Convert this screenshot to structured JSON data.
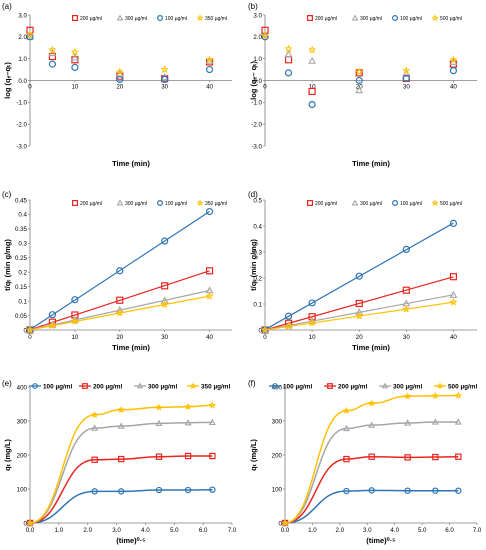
{
  "colors": {
    "s100": "#2E75B6",
    "s200": "#E8251F",
    "s300": "#A6A6A6",
    "s350": "#FFC000",
    "s500": "#FFC000"
  },
  "chart_data": [
    {
      "panel": "(a)",
      "type": "scatter",
      "xlabel": "Time (min)",
      "ylabel": "log (qₑ–qₜ)",
      "xlim": [
        0,
        45
      ],
      "ylim": [
        -3.0,
        3.0
      ],
      "xticks": [
        "0",
        "10",
        "20",
        "30",
        "40"
      ],
      "yticks": [
        "3.0",
        "2.0",
        "1.0",
        "0.0",
        "-1.0",
        "-2.0",
        "-3.0"
      ],
      "legend": "top-right",
      "series": [
        {
          "name": "200 µg/ml",
          "marker": "square",
          "color": "#E8251F",
          "x": [
            0,
            5,
            10,
            20,
            30,
            40
          ],
          "y": [
            2.3,
            1.1,
            0.95,
            0.2,
            0.08,
            0.85
          ]
        },
        {
          "name": "300 µg/ml",
          "marker": "triangle",
          "color": "#A6A6A6",
          "x": [
            0,
            5,
            10,
            20,
            30,
            40
          ],
          "y": [
            2.0,
            1.25,
            1.05,
            0.3,
            0.15,
            0.9
          ]
        },
        {
          "name": "100 µg/ml",
          "marker": "circle",
          "color": "#2E75B6",
          "x": [
            0,
            5,
            10,
            20,
            30,
            40
          ],
          "y": [
            2.0,
            0.75,
            0.6,
            0.05,
            0.05,
            0.5
          ]
        },
        {
          "name": "350 µg/ml",
          "marker": "star",
          "color": "#FFC000",
          "x": [
            0,
            5,
            10,
            20,
            30,
            40
          ],
          "y": [
            2.1,
            1.4,
            1.3,
            0.4,
            0.5,
            0.95
          ]
        }
      ]
    },
    {
      "panel": "(b)",
      "type": "scatter",
      "xlabel": "Time (min)",
      "ylabel": "log (qₑ– qₜ)",
      "xlim": [
        0,
        45
      ],
      "ylim": [
        -3.0,
        3.0
      ],
      "xticks": [
        "0",
        "10",
        "20",
        "30",
        "40"
      ],
      "yticks": [
        "3.0",
        "2.0",
        "1.0",
        "0.0",
        "-1.0",
        "-2.0",
        "-3.0"
      ],
      "legend": "top-right",
      "series": [
        {
          "name": "200 µg/ml",
          "marker": "square",
          "color": "#E8251F",
          "x": [
            0,
            5,
            10,
            20,
            30,
            40
          ],
          "y": [
            2.3,
            0.95,
            -0.5,
            0.35,
            0.1,
            0.75
          ]
        },
        {
          "name": "300 µg/ml",
          "marker": "triangle",
          "color": "#A6A6A6",
          "x": [
            0,
            5,
            10,
            20,
            30,
            40
          ],
          "y": [
            2.1,
            1.2,
            0.9,
            -0.45,
            0.3,
            0.85
          ]
        },
        {
          "name": "100 µg/ml",
          "marker": "circle",
          "color": "#2E75B6",
          "x": [
            0,
            5,
            10,
            20,
            30,
            40
          ],
          "y": [
            2.0,
            0.35,
            -1.1,
            0.0,
            0.1,
            0.45
          ]
        },
        {
          "name": "500 µg/ml",
          "marker": "star",
          "color": "#FFC000",
          "x": [
            0,
            5,
            10,
            20,
            30,
            40
          ],
          "y": [
            2.05,
            1.45,
            1.4,
            0.4,
            0.45,
            0.95
          ]
        }
      ]
    },
    {
      "panel": "(c)",
      "type": "scatter",
      "xlabel": "Time (min)",
      "ylabel": "t/qₜ (min g/mg)",
      "xlim": [
        0,
        45
      ],
      "ylim": [
        0,
        0.45
      ],
      "xticks": [
        "0",
        "10",
        "20",
        "30",
        "40"
      ],
      "yticks": [
        "0.45",
        "0.4",
        "0.35",
        "0.3",
        "0.25",
        "0.2",
        "0.15",
        "0.1",
        "0.05",
        "0"
      ],
      "legend": "top-right",
      "series": [
        {
          "name": "200 µg/ml",
          "marker": "square",
          "color": "#E8251F",
          "x": [
            0,
            5,
            10,
            20,
            30,
            40
          ],
          "y": [
            0,
            0.027,
            0.052,
            0.103,
            0.153,
            0.205
          ]
        },
        {
          "name": "300 µg/ml",
          "marker": "triangle",
          "color": "#A6A6A6",
          "x": [
            0,
            5,
            10,
            20,
            30,
            40
          ],
          "y": [
            0,
            0.018,
            0.035,
            0.069,
            0.102,
            0.137
          ]
        },
        {
          "name": "100 µg/ml",
          "marker": "circle",
          "color": "#2E75B6",
          "x": [
            0,
            5,
            10,
            20,
            30,
            40
          ],
          "y": [
            0,
            0.053,
            0.105,
            0.205,
            0.308,
            0.41
          ]
        },
        {
          "name": "350 µg/ml",
          "marker": "star",
          "color": "#FFC000",
          "x": [
            0,
            5,
            10,
            20,
            30,
            40
          ],
          "y": [
            0,
            0.015,
            0.03,
            0.059,
            0.088,
            0.117
          ]
        }
      ]
    },
    {
      "panel": "(d)",
      "type": "scatter",
      "xlabel": "Time (min)",
      "ylabel": "t/qₜ (min g/mg)",
      "xlim": [
        0,
        45
      ],
      "ylim": [
        0,
        0.5
      ],
      "xticks": [
        "0",
        "10",
        "20",
        "30",
        "40"
      ],
      "yticks": [
        "0.5",
        "0.4",
        "0.3",
        "0.2",
        "0.1",
        "0"
      ],
      "legend": "top-right",
      "series": [
        {
          "name": "200 µg/ml",
          "marker": "square",
          "color": "#E8251F",
          "x": [
            0,
            5,
            10,
            20,
            30,
            40
          ],
          "y": [
            0,
            0.026,
            0.051,
            0.102,
            0.153,
            0.205
          ]
        },
        {
          "name": "300 µg/ml",
          "marker": "triangle",
          "color": "#A6A6A6",
          "x": [
            0,
            5,
            10,
            20,
            30,
            40
          ],
          "y": [
            0,
            0.017,
            0.034,
            0.068,
            0.102,
            0.135
          ]
        },
        {
          "name": "100 µg/ml",
          "marker": "circle",
          "color": "#2E75B6",
          "x": [
            0,
            5,
            10,
            20,
            30,
            40
          ],
          "y": [
            0,
            0.053,
            0.104,
            0.207,
            0.31,
            0.41
          ]
        },
        {
          "name": "500 µg/ml",
          "marker": "star",
          "color": "#FFC000",
          "x": [
            0,
            5,
            10,
            20,
            30,
            40
          ],
          "y": [
            0,
            0.014,
            0.027,
            0.054,
            0.08,
            0.107
          ]
        }
      ]
    },
    {
      "panel": "(e)",
      "type": "line",
      "xlabel": "(time)⁰·⁵",
      "ylabel": "qₜ (mg/L)",
      "xlim": [
        0,
        7.0
      ],
      "ylim": [
        0,
        400
      ],
      "xticks": [
        "0.0",
        "1.0",
        "2.0",
        "3.0",
        "4.0",
        "5.0",
        "6.0",
        "7.0"
      ],
      "yticks": [
        "400",
        "300",
        "200",
        "100",
        "0"
      ],
      "legend": "top",
      "series": [
        {
          "name": "100 µg/ml",
          "marker": "circle",
          "color": "#2E75B6",
          "x": [
            0,
            2.24,
            3.16,
            4.47,
            5.48,
            6.32
          ],
          "y": [
            0,
            93,
            93,
            97,
            97,
            98
          ]
        },
        {
          "name": "200 µg/ml",
          "marker": "square",
          "color": "#E8251F",
          "x": [
            0,
            2.24,
            3.16,
            4.47,
            5.48,
            6.32
          ],
          "y": [
            0,
            186,
            188,
            195,
            197,
            197
          ]
        },
        {
          "name": "300 µg/ml",
          "marker": "triangle",
          "color": "#A6A6A6",
          "x": [
            0,
            2.24,
            3.16,
            4.47,
            5.48,
            6.32
          ],
          "y": [
            0,
            279,
            285,
            293,
            295,
            296
          ]
        },
        {
          "name": "350 µg/ml",
          "marker": "star",
          "color": "#FFC000",
          "x": [
            0,
            2.24,
            3.16,
            4.47,
            5.48,
            6.32
          ],
          "y": [
            0,
            318,
            333,
            340,
            342,
            346
          ]
        }
      ]
    },
    {
      "panel": "(f)",
      "type": "line",
      "xlabel": "(time)⁰·⁵",
      "ylabel": "qₜ (mg/L)",
      "xlim": [
        0,
        7.0
      ],
      "ylim": [
        0,
        400
      ],
      "xticks": [
        "0.0",
        "1.0",
        "2.0",
        "3.0",
        "4.0",
        "5.0",
        "6.0",
        "7.0"
      ],
      "yticks": [
        "400",
        "300",
        "200",
        "100",
        "0"
      ],
      "legend": "top",
      "series": [
        {
          "name": "100 µg/ml",
          "marker": "circle",
          "color": "#2E75B6",
          "x": [
            0,
            2.24,
            3.16,
            4.47,
            5.48,
            6.32
          ],
          "y": [
            0,
            94,
            96,
            95,
            95,
            95
          ]
        },
        {
          "name": "200 µg/ml",
          "marker": "square",
          "color": "#E8251F",
          "x": [
            0,
            2.24,
            3.16,
            4.47,
            5.48,
            6.32
          ],
          "y": [
            0,
            188,
            195,
            193,
            194,
            195
          ]
        },
        {
          "name": "300 µg/ml",
          "marker": "triangle",
          "color": "#A6A6A6",
          "x": [
            0,
            2.24,
            3.16,
            4.47,
            5.48,
            6.32
          ],
          "y": [
            0,
            278,
            288,
            294,
            297,
            297
          ]
        },
        {
          "name": "500 µg/ml",
          "marker": "star",
          "color": "#FFC000",
          "x": [
            0,
            2.24,
            3.16,
            4.47,
            5.48,
            6.32
          ],
          "y": [
            0,
            330,
            352,
            373,
            374,
            375
          ]
        }
      ]
    }
  ]
}
